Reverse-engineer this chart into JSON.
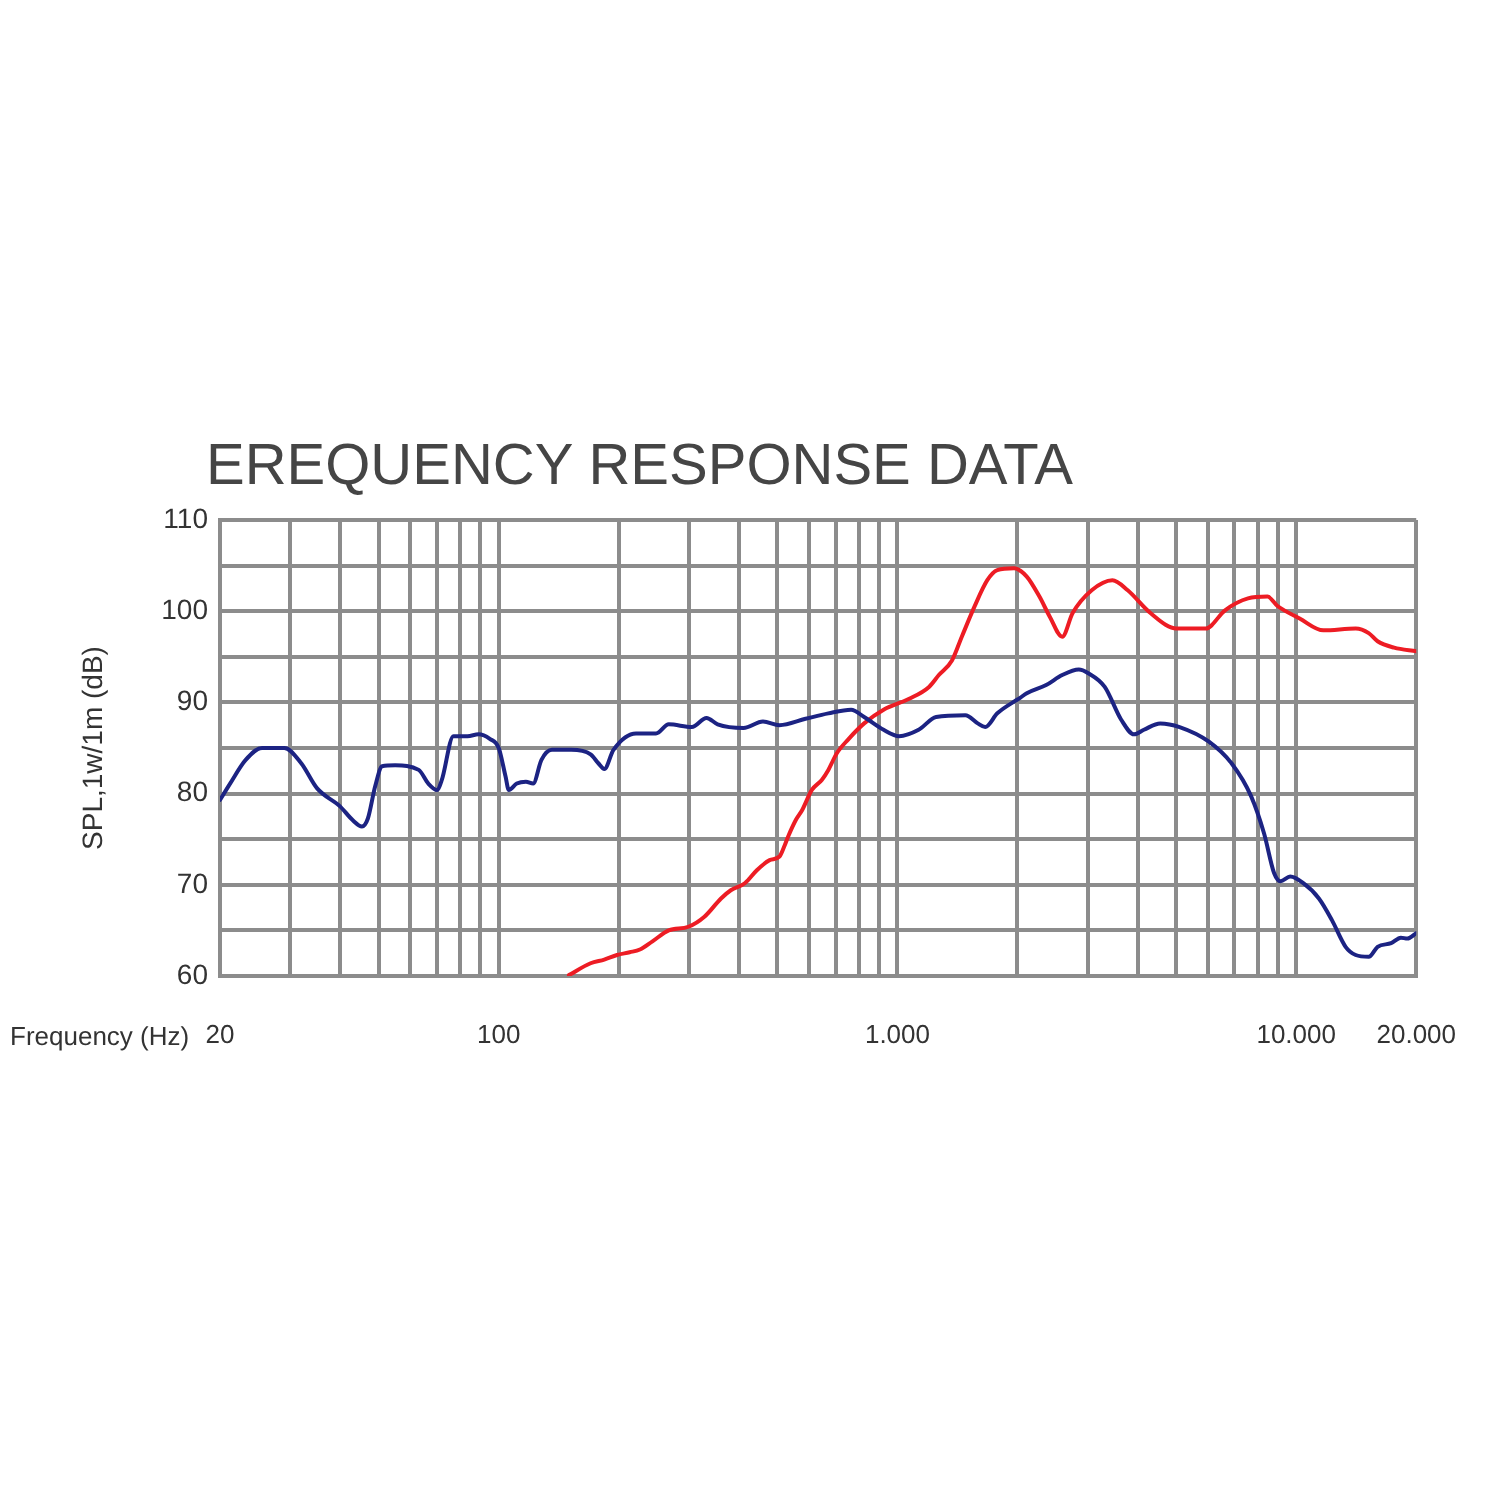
{
  "chart_data": {
    "type": "line",
    "title": "EREQUENCY RESPONSE DATA",
    "xlabel": "Frequency (Hz)",
    "ylabel": "SPL,1w/1m (dB)",
    "log": "x",
    "grid": true,
    "xlim": [
      20,
      20000
    ],
    "xticks": [
      20,
      {
        "value": 30,
        "label": null
      },
      {
        "value": 40,
        "label": null
      },
      {
        "value": 50,
        "label": null
      },
      {
        "value": 60,
        "label": null
      },
      {
        "value": 70,
        "label": null
      },
      {
        "value": 80,
        "label": null
      },
      {
        "value": 90,
        "label": null
      },
      100,
      {
        "value": 200,
        "label": null
      },
      {
        "value": 300,
        "label": null
      },
      {
        "value": 400,
        "label": null
      },
      {
        "value": 500,
        "label": null
      },
      {
        "value": 600,
        "label": null
      },
      {
        "value": 700,
        "label": null
      },
      {
        "value": 800,
        "label": null
      },
      {
        "value": 900,
        "label": null
      },
      {
        "value": 1000,
        "label": "1.000"
      },
      {
        "value": 2000,
        "label": null
      },
      {
        "value": 3000,
        "label": null
      },
      {
        "value": 4000,
        "label": null
      },
      {
        "value": 5000,
        "label": null
      },
      {
        "value": 6000,
        "label": null
      },
      {
        "value": 7000,
        "label": null
      },
      {
        "value": 8000,
        "label": null
      },
      {
        "value": 9000,
        "label": null
      },
      {
        "value": 10000,
        "label": "10.000"
      },
      {
        "value": 20000,
        "label": "20.000"
      }
    ],
    "ylim": [
      60,
      110
    ],
    "yticks": [
      60,
      {
        "value": 65,
        "label": null
      },
      70,
      {
        "value": 75,
        "label": null
      },
      80,
      {
        "value": 85,
        "label": null
      },
      90,
      {
        "value": 95,
        "label": null
      },
      100,
      {
        "value": 105,
        "label": null
      },
      110
    ],
    "series": [
      {
        "color": "#1c2383",
        "x": [
          20,
          21.2,
          23.2,
          25.5,
          29,
          32,
          35,
          40,
          43,
          45.4,
          47,
          49,
          51,
          55,
          63,
          66.6,
          70,
          72,
          77,
          83.5,
          89,
          95,
          100,
          104,
          106,
          111,
          117,
          122,
          128,
          136,
          152,
          170,
          178,
          184,
          194,
          221,
          248,
          267,
          305,
          332,
          354,
          411,
          460,
          506,
          588,
          671,
          765,
          825,
          923,
          1010,
          1130,
          1250,
          1480,
          1590,
          1660,
          1780,
          2030,
          2110,
          2360,
          2590,
          2850,
          3010,
          3310,
          3640,
          3920,
          4150,
          4560,
          5100,
          6040,
          6890,
          7710,
          8310,
          8800,
          9130,
          9660,
          10400,
          11400,
          12300,
          13300,
          14100,
          15200,
          16000,
          17300,
          18300,
          19000,
          20000
        ],
        "values": [
          79.3,
          81.1,
          83.7,
          85,
          85,
          83.3,
          80.6,
          78.6,
          77.1,
          76.4,
          77.3,
          80.8,
          83,
          83.1,
          82.6,
          81.1,
          80.4,
          81.5,
          86.3,
          86.3,
          86.5,
          86,
          85,
          81.9,
          80.4,
          81.1,
          81.3,
          81.1,
          83.7,
          84.8,
          84.8,
          84.3,
          83.3,
          82.7,
          84.8,
          86.6,
          86.6,
          87.6,
          87.3,
          88.3,
          87.6,
          87.2,
          87.9,
          87.5,
          88.2,
          88.8,
          89.2,
          88.4,
          87,
          86.3,
          87,
          88.4,
          88.6,
          87.7,
          87.3,
          88.8,
          90.5,
          91,
          91.9,
          93,
          93.6,
          93.2,
          91.7,
          88.1,
          86.5,
          87,
          87.7,
          87.3,
          85.7,
          83.3,
          79.7,
          75.6,
          71.3,
          70.4,
          70.9,
          70.2,
          68.5,
          66.1,
          63.2,
          62.3,
          62.1,
          63.2,
          63.6,
          64.2,
          64.1,
          64.7
        ]
      },
      {
        "color": "#ed1c24",
        "x": [
          150,
          170,
          184,
          198,
          213,
          226,
          243,
          267,
          299,
          328,
          361,
          382,
          415,
          444,
          478,
          506,
          520,
          532,
          556,
          577,
          610,
          646,
          671,
          704,
          751,
          825,
          923,
          1070,
          1200,
          1270,
          1370,
          1450,
          1560,
          1680,
          1780,
          1960,
          2110,
          2270,
          2410,
          2590,
          2750,
          3070,
          3460,
          3780,
          4310,
          5010,
          5930,
          6630,
          7570,
          8470,
          8960,
          10200,
          11700,
          14100,
          15200,
          16000,
          17600,
          20000
        ],
        "values": [
          60.1,
          61.4,
          61.8,
          62.3,
          62.6,
          62.9,
          63.8,
          65,
          65.4,
          66.5,
          68.5,
          69.4,
          70.2,
          71.6,
          72.7,
          73.1,
          74.2,
          75.3,
          77.1,
          78.2,
          80.4,
          81.5,
          82.6,
          84.4,
          85.9,
          87.7,
          89.2,
          90.4,
          91.7,
          93,
          94.6,
          97.2,
          100.5,
          103.4,
          104.5,
          104.7,
          103.8,
          101.6,
          99.4,
          97.2,
          99.8,
          102.3,
          103.4,
          102.3,
          99.8,
          98.1,
          98.1,
          100.1,
          101.4,
          101.6,
          100.6,
          99.2,
          97.9,
          98.1,
          97.6,
          96.7,
          96,
          95.6
        ]
      }
    ]
  }
}
